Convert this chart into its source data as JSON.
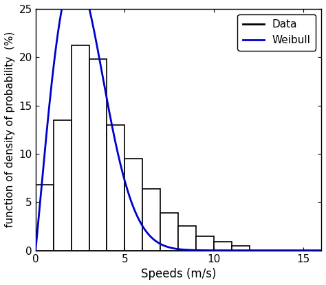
{
  "bar_edges": [
    0,
    1,
    2,
    3,
    4,
    5,
    6,
    7,
    8,
    9,
    10,
    11,
    12
  ],
  "bar_heights": [
    6.8,
    13.5,
    21.2,
    19.8,
    13.0,
    9.5,
    6.4,
    3.9,
    2.5,
    1.5,
    0.9,
    0.5
  ],
  "bar_facecolor": "#ffffff",
  "bar_edgecolor": "#000000",
  "bar_linewidth": 1.2,
  "weibull_color": "#0000cc",
  "weibull_linewidth": 2.0,
  "weibull_k": 2.05,
  "weibull_lambda": 3.05,
  "xlabel": "Speeds (m/s)",
  "ylabel": "function of density of probability  (%)",
  "xlim": [
    0,
    16
  ],
  "ylim": [
    0,
    25
  ],
  "xticks": [
    0,
    5,
    10,
    15
  ],
  "yticks": [
    0,
    5,
    10,
    15,
    20,
    25
  ],
  "legend_data_label": "Data",
  "legend_weibull_label": "Weibull",
  "background_color": "#ffffff",
  "xlabel_fontsize": 12,
  "ylabel_fontsize": 11,
  "tick_fontsize": 11
}
